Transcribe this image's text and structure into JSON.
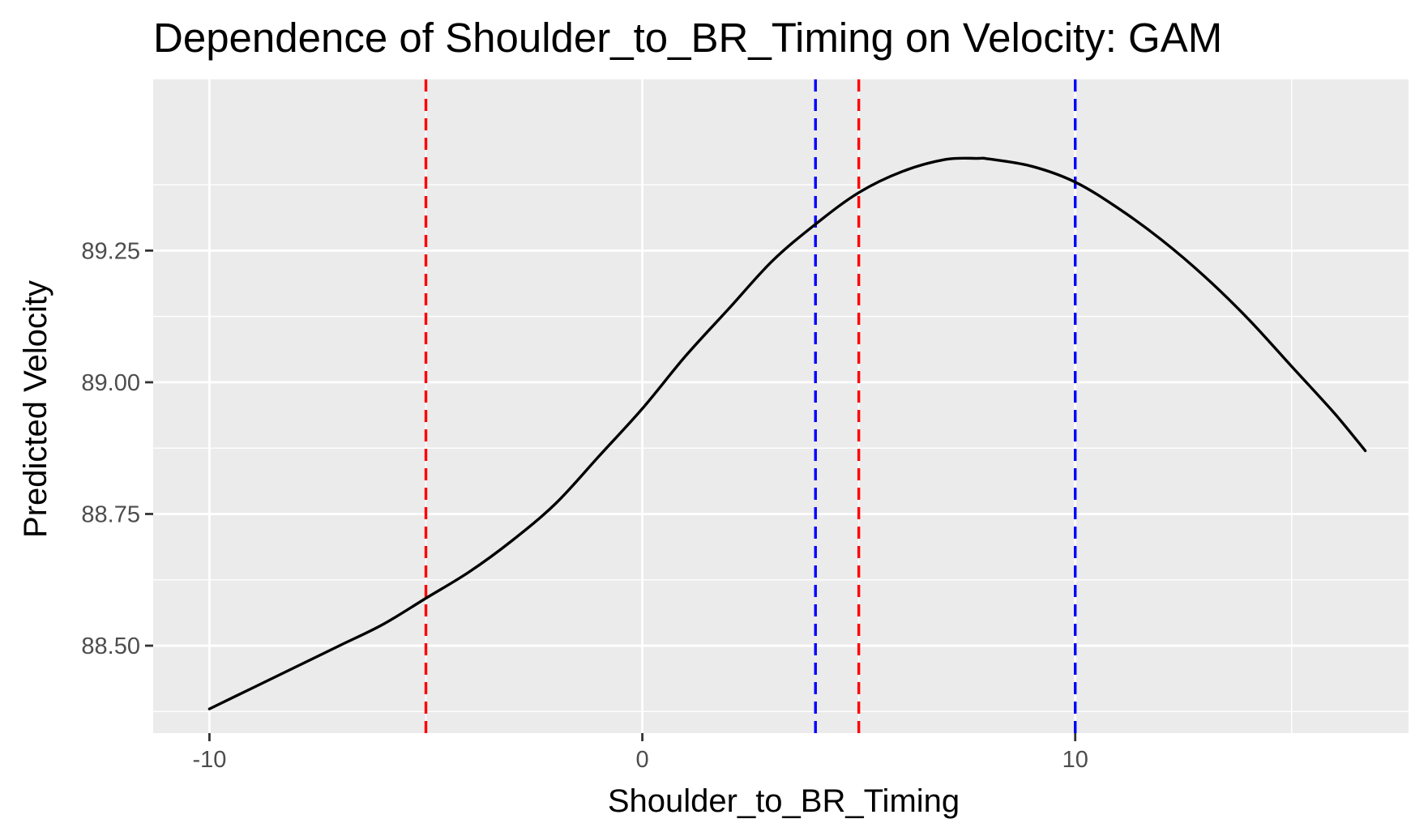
{
  "chart_data": {
    "type": "line",
    "title": "Dependence of Shoulder_to_BR_Timing on Velocity: GAM",
    "xlabel": "Shoulder_to_BR_Timing",
    "ylabel": "Predicted Velocity",
    "xlim": [
      -11.3,
      17.7
    ],
    "ylim": [
      88.334,
      89.575
    ],
    "x_ticks": [
      {
        "value": -10,
        "label": "-10"
      },
      {
        "value": 0,
        "label": "0"
      },
      {
        "value": 10,
        "label": "10"
      }
    ],
    "x_minor_ticks": [
      -5,
      5,
      15
    ],
    "y_ticks": [
      {
        "value": 88.5,
        "label": "88.50"
      },
      {
        "value": 88.75,
        "label": "88.75"
      },
      {
        "value": 89.0,
        "label": "89.00"
      },
      {
        "value": 89.25,
        "label": "89.25"
      }
    ],
    "y_minor_ticks": [
      88.375,
      88.625,
      88.875,
      89.125,
      89.375
    ],
    "grid": true,
    "panel_background": "#ebebeb",
    "grid_color": "#ffffff",
    "series": [
      {
        "color": "#000000",
        "x": [
          -10,
          -9,
          -8,
          -7,
          -6,
          -5,
          -4,
          -3,
          -2,
          -1,
          0,
          1,
          2,
          3,
          4,
          5,
          6,
          7,
          7.75,
          8,
          9,
          10,
          11,
          12,
          13,
          14,
          15,
          16,
          16.7
        ],
        "y": [
          88.38,
          88.42,
          88.46,
          88.5,
          88.54,
          88.59,
          88.64,
          88.7,
          88.77,
          88.86,
          88.95,
          89.05,
          89.14,
          89.23,
          89.3,
          89.36,
          89.4,
          89.423,
          89.425,
          89.424,
          89.41,
          89.38,
          89.33,
          89.27,
          89.2,
          89.12,
          89.03,
          88.94,
          88.87
        ]
      }
    ],
    "vlines": [
      {
        "x": -5,
        "color": "#ff0000",
        "style": "dashed"
      },
      {
        "x": 5,
        "color": "#ff0000",
        "style": "dashed"
      },
      {
        "x": 4,
        "color": "#0000ff",
        "style": "dashed"
      },
      {
        "x": 10,
        "color": "#0000ff",
        "style": "dashed"
      }
    ]
  }
}
